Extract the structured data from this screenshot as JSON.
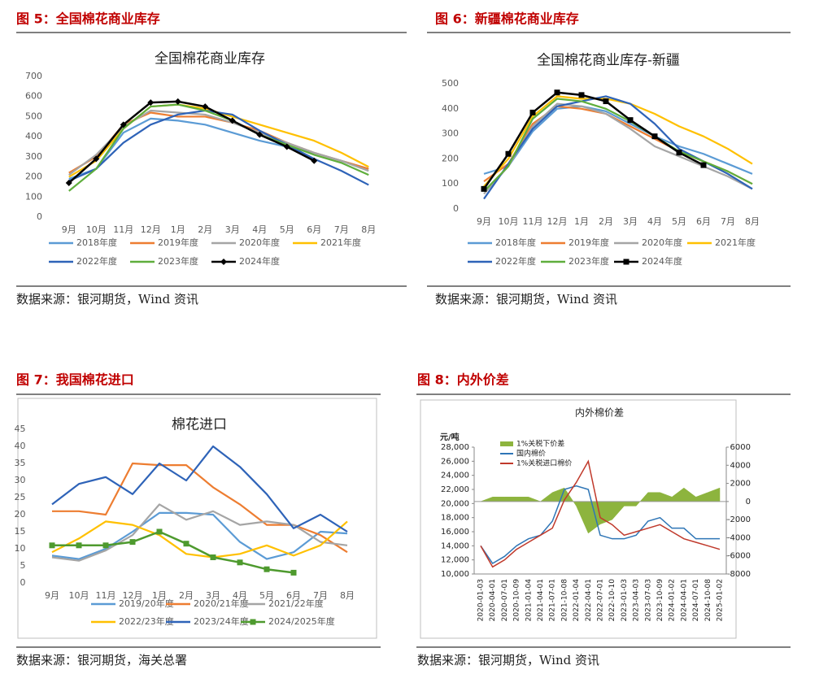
{
  "headings": [
    "图 5：全国棉花商业库存",
    "图 6：新疆棉花商业库存",
    "图 7：我国棉花进口",
    "图 8：内外价差"
  ],
  "sources": [
    "数据来源：银河期货，Wind 资讯",
    "数据来源：银河期货，Wind 资讯",
    "数据来源：银河期货，海关总署",
    "数据来源：银河期货，Wind 资讯"
  ],
  "chart_data": [
    {
      "type": "line",
      "title": "全国棉花商业库存",
      "categories": [
        "9月",
        "10月",
        "11月",
        "12月",
        "1月",
        "2月",
        "3月",
        "4月",
        "5月",
        "6月",
        "7月",
        "8月"
      ],
      "ylim": [
        0,
        700
      ],
      "yticks": [
        0,
        100,
        200,
        300,
        400,
        500,
        600,
        700
      ],
      "series": [
        {
          "name": "2018年度",
          "color": "#5b9bd5",
          "values": [
            190,
            240,
            420,
            490,
            480,
            460,
            420,
            380,
            350,
            320,
            280,
            240
          ]
        },
        {
          "name": "2019年度",
          "color": "#ed7d31",
          "values": [
            220,
            300,
            460,
            520,
            500,
            500,
            470,
            430,
            370,
            320,
            280,
            240
          ]
        },
        {
          "name": "2020年度",
          "color": "#a5a5a5",
          "values": [
            210,
            310,
            450,
            530,
            520,
            510,
            470,
            420,
            370,
            320,
            280,
            230
          ]
        },
        {
          "name": "2021年度",
          "color": "#ffc000",
          "values": [
            200,
            280,
            440,
            550,
            560,
            540,
            500,
            460,
            420,
            380,
            320,
            250
          ]
        },
        {
          "name": "2022年度",
          "color": "#2e63b8",
          "values": [
            180,
            240,
            370,
            460,
            510,
            530,
            510,
            430,
            360,
            290,
            230,
            160
          ]
        },
        {
          "name": "2023年度",
          "color": "#5fae3c",
          "values": [
            130,
            240,
            440,
            550,
            560,
            530,
            480,
            410,
            360,
            310,
            270,
            210
          ]
        },
        {
          "name": "2024年度",
          "color": "#000000",
          "marker": "diamond",
          "values": [
            170,
            290,
            460,
            570,
            575,
            550,
            480,
            410,
            350,
            280,
            null,
            null
          ]
        }
      ]
    },
    {
      "type": "line",
      "title": "全国棉花商业库存-新疆",
      "categories": [
        "9月",
        "10月",
        "11月",
        "12月",
        "1月",
        "2月",
        "3月",
        "4月",
        "5月",
        "6月",
        "7月",
        "8月"
      ],
      "ylim": [
        0,
        500
      ],
      "yticks": [
        0,
        100,
        200,
        300,
        400,
        500
      ],
      "series": [
        {
          "name": "2018年度",
          "color": "#5b9bd5",
          "values": [
            140,
            170,
            310,
            400,
            410,
            390,
            340,
            290,
            250,
            220,
            180,
            140
          ]
        },
        {
          "name": "2019年度",
          "color": "#ed7d31",
          "values": [
            110,
            180,
            340,
            410,
            400,
            380,
            330,
            280,
            230,
            190,
            150,
            100
          ]
        },
        {
          "name": "2020年度",
          "color": "#a5a5a5",
          "values": [
            60,
            170,
            330,
            420,
            410,
            380,
            320,
            250,
            210,
            170,
            130,
            80
          ]
        },
        {
          "name": "2021年度",
          "color": "#ffc000",
          "values": [
            90,
            200,
            370,
            450,
            440,
            440,
            420,
            380,
            330,
            290,
            240,
            180
          ]
        },
        {
          "name": "2022年度",
          "color": "#2e63b8",
          "values": [
            40,
            180,
            320,
            410,
            430,
            450,
            420,
            340,
            240,
            190,
            140,
            80
          ]
        },
        {
          "name": "2023年度",
          "color": "#5fae3c",
          "values": [
            70,
            170,
            360,
            440,
            430,
            400,
            350,
            290,
            230,
            190,
            150,
            100
          ]
        },
        {
          "name": "2024年度",
          "color": "#000000",
          "marker": "square",
          "values": [
            80,
            220,
            385,
            465,
            455,
            430,
            355,
            290,
            225,
            175,
            null,
            null
          ]
        }
      ]
    },
    {
      "type": "line",
      "title": "棉花进口",
      "categories": [
        "9月",
        "10月",
        "11月",
        "12月",
        "1月",
        "2月",
        "3月",
        "4月",
        "5月",
        "6月",
        "7月",
        "8月"
      ],
      "ylim": [
        0,
        45
      ],
      "yticks": [
        0,
        5,
        10,
        15,
        20,
        25,
        30,
        35,
        40,
        45
      ],
      "series": [
        {
          "name": "2019/20年度",
          "color": "#5b9bd5",
          "values": [
            8,
            7,
            10,
            15,
            20.5,
            20.5,
            20,
            12,
            7,
            9,
            15,
            14.5
          ]
        },
        {
          "name": "2020/21年度",
          "color": "#ed7d31",
          "values": [
            21,
            21,
            20,
            35,
            34.5,
            34.5,
            28,
            23,
            17,
            17,
            14,
            9
          ]
        },
        {
          "name": "2021/22年度",
          "color": "#a5a5a5",
          "values": [
            7.5,
            6.5,
            9.5,
            14,
            23,
            18.5,
            21,
            17,
            18,
            17,
            12,
            11
          ]
        },
        {
          "name": "2022/23年度",
          "color": "#ffc000",
          "values": [
            9,
            13,
            18,
            17,
            14,
            8.5,
            7.5,
            8.5,
            11,
            8,
            11,
            18
          ]
        },
        {
          "name": "2023/24年度",
          "color": "#2e63b8",
          "values": [
            23,
            29,
            31,
            26,
            35,
            30,
            40,
            34,
            26,
            16,
            20,
            15
          ]
        },
        {
          "name": "2024/2025年度",
          "color": "#4e9a2e",
          "marker": "square",
          "values": [
            11,
            11,
            11,
            12,
            15,
            11.5,
            7.5,
            6,
            4,
            3,
            null,
            null
          ]
        }
      ]
    },
    {
      "type": "combo",
      "title": "内外棉价差",
      "ylabel": "元/吨",
      "categories": [
        "2020-01-03",
        "2020-04-01",
        "2020-07-01",
        "2020-10-09",
        "2021-01-04",
        "2021-04-01",
        "2021-07-01",
        "2021-10-08",
        "2022-01-04",
        "2022-04-01",
        "2022-07-01",
        "2022-10-10",
        "2023-01-03",
        "2023-04-03",
        "2023-07-03",
        "2023-10-09",
        "2024-01-02",
        "2024-04-01",
        "2024-07-01",
        "2024-10-08",
        "2025-01-02"
      ],
      "ylim": [
        10000,
        28000
      ],
      "yticks": [
        {
          "value": 10000,
          "label": "10,000"
        },
        {
          "value": 12000,
          "label": "12,000"
        },
        {
          "value": 14000,
          "label": "14,000"
        },
        {
          "value": 16000,
          "label": "16,000"
        },
        {
          "value": 18000,
          "label": "18,000"
        },
        {
          "value": 20000,
          "label": "20,000"
        },
        {
          "value": 22000,
          "label": "22,000"
        },
        {
          "value": 24000,
          "label": "24,000"
        },
        {
          "value": 26000,
          "label": "26,000"
        },
        {
          "value": 28000,
          "label": "28,000"
        }
      ],
      "y2lim": [
        -8000,
        6000
      ],
      "y2ticks": [
        -8000,
        -6000,
        -4000,
        -2000,
        0,
        2000,
        4000,
        6000
      ],
      "series": [
        {
          "name": "1%关税下价差",
          "color": "#8db43e",
          "type": "area",
          "axis": "y2",
          "values": [
            0,
            500,
            500,
            500,
            500,
            0,
            1000,
            1500,
            -500,
            -3500,
            -2500,
            -2000,
            -500,
            -500,
            1000,
            1000,
            500,
            1500,
            500,
            1000,
            1500
          ]
        },
        {
          "name": "国内棉价",
          "color": "#2e75b6",
          "values": [
            14000,
            11500,
            12500,
            14000,
            15000,
            15500,
            17500,
            22000,
            22500,
            22000,
            15500,
            15000,
            15000,
            15500,
            17500,
            18000,
            16500,
            16500,
            15000,
            15000,
            15000
          ]
        },
        {
          "name": "1%关税进口棉价",
          "color": "#c0392b",
          "values": [
            14000,
            11000,
            12000,
            13500,
            14500,
            15500,
            16500,
            20500,
            23000,
            26000,
            18000,
            17000,
            15500,
            16000,
            16500,
            17000,
            16000,
            15000,
            14500,
            14000,
            13500
          ]
        }
      ]
    }
  ]
}
